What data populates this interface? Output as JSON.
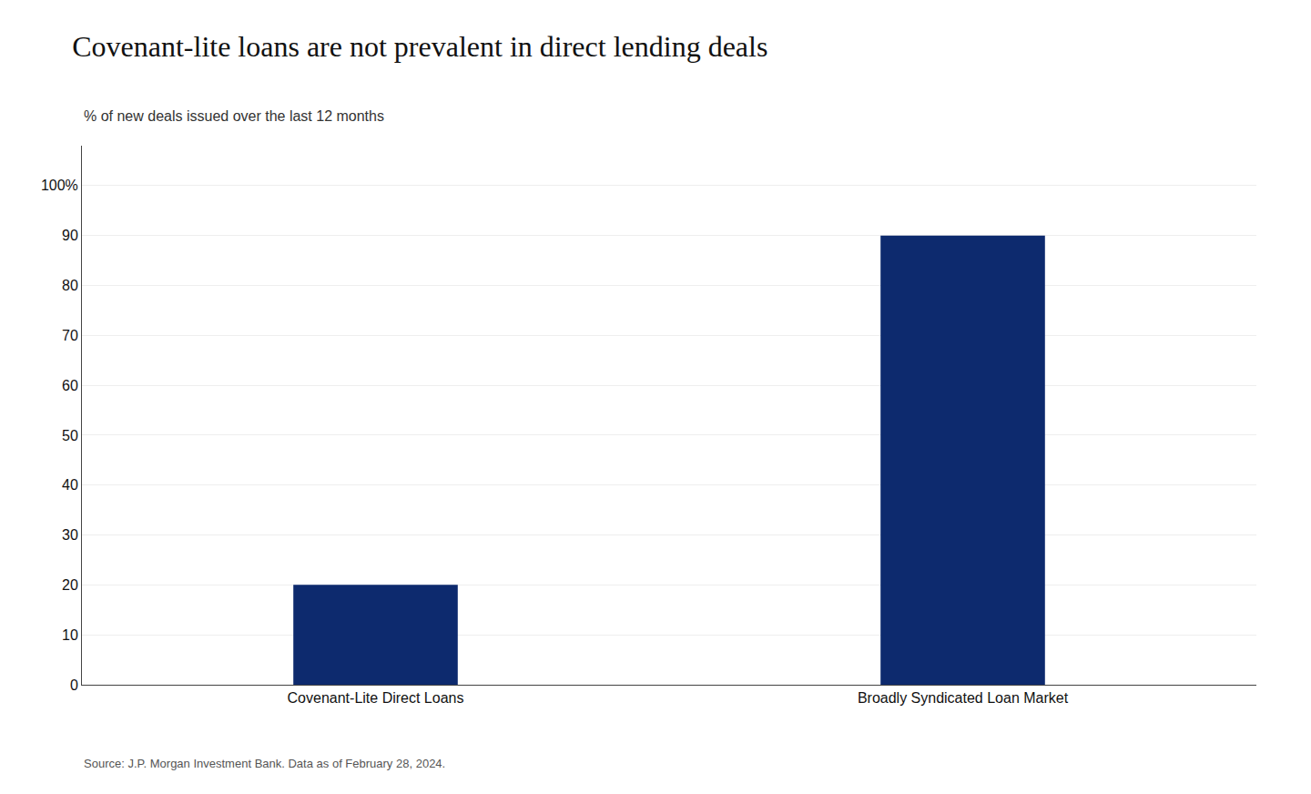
{
  "chart_data": {
    "type": "bar",
    "title": "Covenant-lite loans are not prevalent in direct lending deals",
    "subtitle": "% of new deals issued over the last 12 months",
    "annotations": [
      "Source: J.P. Morgan Investment Bank. Data as of February 28, 2024."
    ],
    "categories": [
      "Covenant-Lite Direct Loans",
      "Broadly Syndicated Loan Market"
    ],
    "values": [
      20,
      90
    ],
    "color": "#0d2a6e",
    "ylim": [
      0,
      108
    ],
    "yticks": [
      0,
      10,
      20,
      30,
      40,
      50,
      60,
      70,
      80,
      90,
      {
        "value": 100,
        "label": "100%"
      }
    ],
    "grid": true
  }
}
